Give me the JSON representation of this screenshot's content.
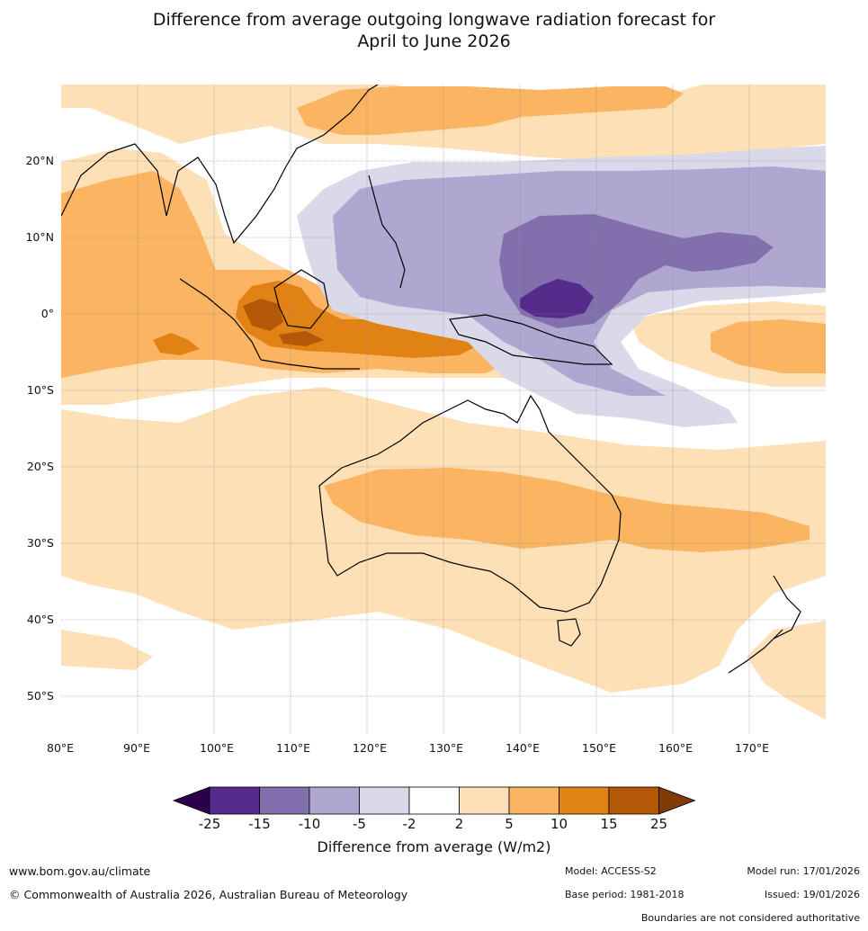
{
  "title": {
    "line1": "Difference from average outgoing longwave radiation forecast for",
    "line2": "April to June 2026"
  },
  "map": {
    "lon_labels": [
      "80°E",
      "90°E",
      "100°E",
      "110°E",
      "120°E",
      "130°E",
      "140°E",
      "150°E",
      "160°E",
      "170°E"
    ],
    "lat_labels": [
      "20°N",
      "10°N",
      "0°",
      "10°S",
      "20°S",
      "30°S",
      "40°S",
      "50°S"
    ],
    "regions": [
      {
        "name": "maritime-continent-positive-anomaly",
        "category": "10 to 15"
      },
      {
        "name": "central-pacific-negative-anomaly",
        "category": "-25 to -15"
      },
      {
        "name": "australia-positive-band",
        "category": "5 to 10"
      }
    ]
  },
  "colorbar": {
    "ticks": [
      "-25",
      "-15",
      "-10",
      "-5",
      "-2",
      "2",
      "5",
      "10",
      "15",
      "25"
    ],
    "colors": [
      "#562a8a",
      "#8170ad",
      "#b0a7d1",
      "#d9d9ea",
      "#ffffff",
      "#fee0b6",
      "#fbb462",
      "#e08214",
      "#b35806"
    ],
    "under_color": "#2d004b",
    "over_color": "#7f3b08",
    "title": "Difference from average (W/m2)"
  },
  "footer": {
    "website": "www.bom.gov.au/climate",
    "copyright": "© Commonwealth of Australia 2026, Australian Bureau of Meteorology",
    "model": "Model: ACCESS-S2",
    "base_period": "Base period: 1981-2018",
    "model_run": "Model run: 17/01/2026",
    "issued": "Issued: 19/01/2026",
    "disclaimer": "Boundaries are not considered authoritative"
  }
}
